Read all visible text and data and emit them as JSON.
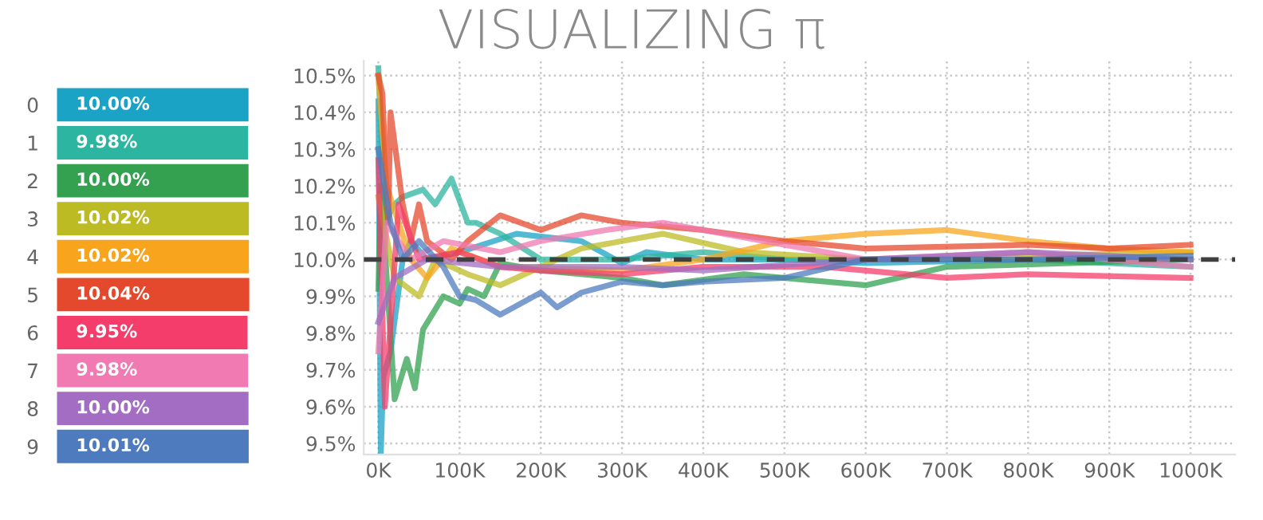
{
  "chart_data": [
    {
      "type": "bar",
      "orientation": "horizontal",
      "categories": [
        "0",
        "1",
        "2",
        "3",
        "4",
        "5",
        "6",
        "7",
        "8",
        "9"
      ],
      "values": [
        10.0,
        9.98,
        10.0,
        10.02,
        10.02,
        10.04,
        9.95,
        9.98,
        10.0,
        10.01
      ],
      "colors": [
        "#1ba3c6",
        "#2cb5a0",
        "#33a150",
        "#bdbb23",
        "#f8a51d",
        "#e5492d",
        "#f43d6b",
        "#f07ab1",
        "#a26dc2",
        "#4d7bbd"
      ],
      "value_labels": [
        "10.00%",
        "9.98%",
        "10.00%",
        "10.02%",
        "10.02%",
        "10.04%",
        "9.95%",
        "9.98%",
        "10.00%",
        "10.01%"
      ],
      "tick_labels": "y",
      "grid": false
    },
    {
      "type": "line",
      "title": "VISUALIZING π",
      "xlim": [
        -18,
        1055
      ],
      "ylim": [
        9.47,
        10.54
      ],
      "xticks": [
        {
          "value": 0,
          "label": "0K"
        },
        {
          "value": 100,
          "label": "100K"
        },
        {
          "value": 200,
          "label": "200K"
        },
        {
          "value": 300,
          "label": "300K"
        },
        {
          "value": 400,
          "label": "400K"
        },
        {
          "value": 500,
          "label": "500K"
        },
        {
          "value": 600,
          "label": "600K"
        },
        {
          "value": 700,
          "label": "700K"
        },
        {
          "value": 800,
          "label": "800K"
        },
        {
          "value": 900,
          "label": "900K"
        },
        {
          "value": 1000,
          "label": "1000K"
        }
      ],
      "yticks": [
        {
          "value": 9.5,
          "label": "9.5%"
        },
        {
          "value": 9.6,
          "label": "9.6%"
        },
        {
          "value": 9.7,
          "label": "9.7%"
        },
        {
          "value": 9.8,
          "label": "9.8%"
        },
        {
          "value": 9.9,
          "label": "9.9%"
        },
        {
          "value": 10.0,
          "label": "10.0%"
        },
        {
          "value": 10.1,
          "label": "10.1%"
        },
        {
          "value": 10.2,
          "label": "10.2%"
        },
        {
          "value": 10.3,
          "label": "10.3%"
        },
        {
          "value": 10.4,
          "label": "10.4%"
        },
        {
          "value": 10.5,
          "label": "10.5%"
        }
      ],
      "grid": true,
      "legend": false,
      "marker": "none",
      "line_style": "solid",
      "ref_lines": [
        {
          "axis": "y",
          "value": 10.0,
          "label": null,
          "color": "#404040",
          "line_style": "dashed"
        }
      ],
      "series": [
        {
          "color": "#1ba3c6",
          "x": [
            0,
            3,
            6,
            15,
            30,
            40,
            60,
            100,
            170,
            250,
            300,
            330,
            400,
            500,
            600,
            800,
            1000
          ],
          "values": [
            10.43,
            9.47,
            9.68,
            9.75,
            10.0,
            10.05,
            10.0,
            10.02,
            10.07,
            10.05,
            9.99,
            10.02,
            10.0,
            10.0,
            9.99,
            10.0,
            10.0
          ]
        },
        {
          "color": "#2cb5a0",
          "x": [
            0,
            8,
            20,
            30,
            55,
            70,
            90,
            110,
            120,
            150,
            200,
            300,
            400,
            500,
            600,
            800,
            1000
          ],
          "values": [
            10.52,
            10.1,
            10.15,
            10.17,
            10.19,
            10.15,
            10.22,
            10.1,
            10.1,
            10.07,
            10.0,
            10.0,
            10.02,
            10.0,
            10.0,
            10.0,
            9.98
          ]
        },
        {
          "color": "#33a150",
          "x": [
            0,
            3,
            20,
            35,
            45,
            55,
            80,
            100,
            110,
            130,
            150,
            200,
            300,
            350,
            450,
            600,
            700,
            1000
          ],
          "values": [
            9.92,
            10.2,
            9.62,
            9.73,
            9.65,
            9.81,
            9.9,
            9.88,
            9.92,
            9.9,
            9.99,
            9.97,
            9.95,
            9.93,
            9.96,
            9.93,
            9.98,
            10.0
          ]
        },
        {
          "color": "#bdbb23",
          "x": [
            0,
            20,
            50,
            70,
            110,
            150,
            200,
            250,
            300,
            350,
            450,
            600,
            800,
            1000
          ],
          "values": [
            10.17,
            9.95,
            9.9,
            10.0,
            9.96,
            9.93,
            9.98,
            10.03,
            10.05,
            10.07,
            10.02,
            10.0,
            10.01,
            10.02
          ]
        },
        {
          "color": "#f8a51d",
          "x": [
            0,
            10,
            40,
            60,
            90,
            150,
            300,
            400,
            500,
            600,
            700,
            800,
            900,
            1000
          ],
          "values": [
            10.5,
            10.2,
            10.0,
            9.95,
            10.03,
            9.98,
            9.97,
            10.0,
            10.05,
            10.07,
            10.08,
            10.05,
            10.03,
            10.02
          ]
        },
        {
          "color": "#e5492d",
          "x": [
            0,
            5,
            12,
            15,
            30,
            40,
            50,
            60,
            90,
            110,
            150,
            200,
            250,
            300,
            400,
            500,
            600,
            800,
            900,
            1000
          ],
          "values": [
            10.5,
            10.45,
            10.1,
            10.4,
            10.15,
            10.05,
            10.15,
            10.05,
            10.0,
            10.05,
            10.12,
            10.08,
            10.12,
            10.1,
            10.08,
            10.05,
            10.03,
            10.04,
            10.03,
            10.04
          ]
        },
        {
          "color": "#f43d6b",
          "x": [
            0,
            8,
            25,
            50,
            100,
            150,
            200,
            300,
            400,
            550,
            650,
            700,
            800,
            1000
          ],
          "values": [
            10.27,
            9.6,
            10.15,
            10.0,
            10.02,
            9.98,
            9.97,
            9.96,
            9.98,
            9.98,
            9.96,
            9.95,
            9.96,
            9.95
          ]
        },
        {
          "color": "#f07ab1",
          "x": [
            0,
            10,
            40,
            80,
            150,
            200,
            280,
            350,
            450,
            500,
            600,
            800,
            1000
          ],
          "values": [
            9.75,
            10.1,
            10.0,
            10.05,
            10.02,
            10.05,
            10.08,
            10.1,
            10.06,
            10.04,
            10.0,
            10.02,
            9.98
          ]
        },
        {
          "color": "#a26dc2",
          "x": [
            0,
            20,
            60,
            150,
            300,
            400,
            600,
            800,
            1000
          ],
          "values": [
            9.83,
            9.95,
            10.0,
            9.98,
            9.98,
            9.97,
            10.0,
            10.02,
            10.0
          ]
        },
        {
          "color": "#4d7bbd",
          "x": [
            0,
            15,
            30,
            50,
            80,
            100,
            120,
            150,
            200,
            220,
            250,
            300,
            350,
            400,
            500,
            600,
            800,
            1000
          ],
          "values": [
            10.3,
            10.1,
            10.0,
            10.05,
            9.98,
            9.9,
            9.89,
            9.85,
            9.91,
            9.87,
            9.91,
            9.94,
            9.93,
            9.94,
            9.95,
            10.0,
            10.0,
            10.01
          ]
        }
      ]
    }
  ]
}
